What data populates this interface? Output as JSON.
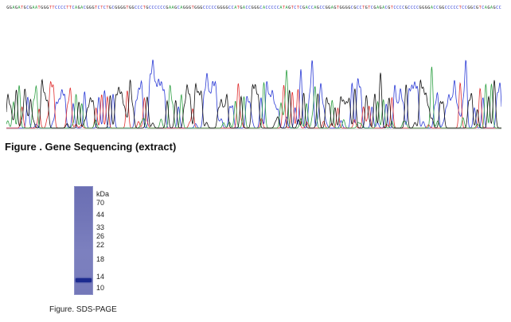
{
  "figure1": {
    "caption": "Figure . Gene Sequencing (extract)",
    "sequence": "GGAGATGCGAATGGGTTCCCCTTCAGACGGGTCTCTGCGGGGTGGCCCTGCCCCCCGAAGCAGGGTGGGCCCCCGGGGCCATGACCGGGCACCCCCATAGTCTCGACCAGCCGGAGTGGGGCGCCTGTCGAGACGTCCCCGCCCCGGGGACCGGCCCCCTCCGGCGTCAGAGCC",
    "trace_colors": {
      "A": "#2ea043",
      "C": "#2b3bd6",
      "G": "#111111",
      "T": "#e03030"
    }
  },
  "figure2": {
    "caption": "Figure. SDS-PAGE",
    "marker_unit": "kDa",
    "markers": [
      "70",
      "44",
      "33",
      "26",
      "22",
      "18",
      "14",
      "10"
    ],
    "band_color": "#1c2a8f"
  }
}
